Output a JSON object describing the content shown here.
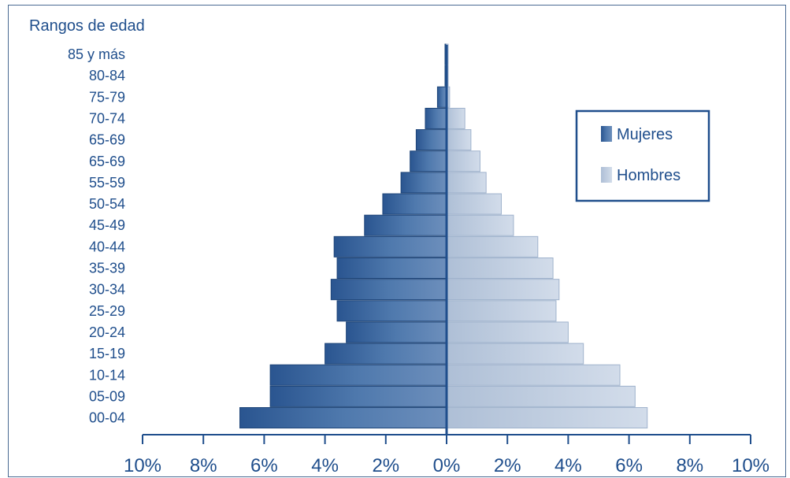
{
  "chart_data": {
    "type": "bar",
    "orientation": "horizontal-population-pyramid",
    "ylabel": "Rangos de edad",
    "categories": [
      "00-04",
      "05-09",
      "10-14",
      "15-19",
      "20-24",
      "25-29",
      "30-34",
      "35-39",
      "40-44",
      "45-49",
      "50-54",
      "55-59",
      "65-69",
      "65-69",
      "70-74",
      "75-79",
      "80-84",
      "85 y más"
    ],
    "series": [
      {
        "name": "Mujeres",
        "side": "left",
        "color": "#2f5d96",
        "values": [
          6.8,
          5.8,
          5.8,
          4.0,
          3.3,
          3.6,
          3.8,
          3.6,
          3.7,
          2.7,
          2.1,
          1.5,
          1.2,
          1.0,
          0.7,
          0.3,
          0.05,
          0.05
        ]
      },
      {
        "name": "Hombres",
        "side": "right",
        "color": "#b7c7dc",
        "values": [
          6.6,
          6.2,
          5.7,
          4.5,
          4.0,
          3.6,
          3.7,
          3.5,
          3.0,
          2.2,
          1.8,
          1.3,
          1.1,
          0.8,
          0.6,
          0.1,
          0.05,
          0.05
        ]
      }
    ],
    "xticks": [
      "10%",
      "8%",
      "6%",
      "4%",
      "2%",
      "0%",
      "2%",
      "4%",
      "6%",
      "8%",
      "10%"
    ],
    "xlim": [
      -10,
      10
    ],
    "legend_position": "top-right",
    "grid": false
  }
}
